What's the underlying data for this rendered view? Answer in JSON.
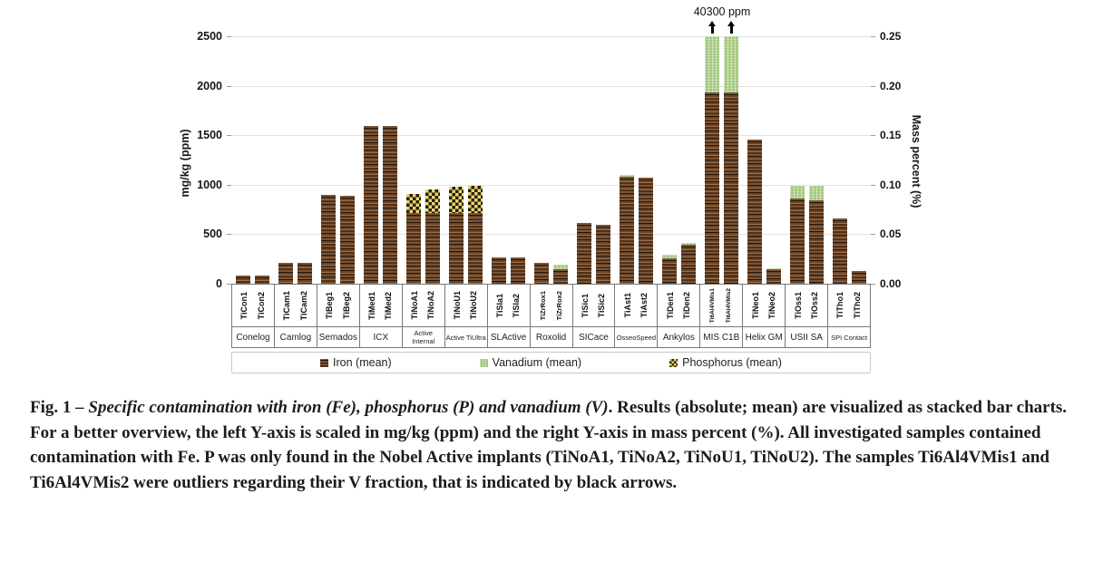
{
  "figure": {
    "annotation": {
      "text": "40300 ppm"
    },
    "y_left": {
      "label": "mg/kg (ppm)",
      "ticks": [
        "2500",
        "2000",
        "1500",
        "1000",
        "500",
        "0"
      ]
    },
    "y_right": {
      "label": "Mass percent (%)",
      "ticks": [
        "0.25",
        "0.20",
        "0.15",
        "0.10",
        "0.05",
        "0.00"
      ]
    },
    "legend": [
      {
        "id": "iron",
        "label": "Iron (mean)"
      },
      {
        "id": "vanadium",
        "label": "Vanadium (mean)"
      },
      {
        "id": "phosphorus",
        "label": "Phosphorus (mean)"
      }
    ],
    "colors": {
      "iron_base": "#6b4527",
      "iron_dark": "#23150b",
      "iron_light": "#9b6f4c",
      "vanadium_green": "#a3c77c",
      "phosphorus_yellow": "#edd36e",
      "phosphorus_dark": "#23210f",
      "gridline": "#e3e3e3",
      "axis_table_line": "#787878",
      "arrow": "#000000"
    }
  },
  "chart_data": {
    "type": "bar",
    "stacked": true,
    "title": "",
    "xlabel": "",
    "ylabel_left": "mg/kg (ppm)",
    "ylabel_right": "Mass percent (%)",
    "ylim_left": [
      0,
      2500
    ],
    "ylim_right": [
      0,
      0.25
    ],
    "grid": true,
    "legend_position": "bottom",
    "series_names": [
      "Iron (mean)",
      "Vanadium (mean)",
      "Phosphorus (mean)"
    ],
    "annotation": {
      "text": "40300 ppm",
      "applies_to": [
        "Ti6Al4VMis1",
        "Ti6Al4VMis2"
      ],
      "meaning": "true vanadium totals exceed the axis; bars clipped at 2500 ppm, marked with black up arrows"
    },
    "groups": [
      {
        "brand": "Conelog",
        "samples": [
          {
            "name": "TiCon1",
            "iron": 80,
            "vanadium": 0,
            "phosphorus": 0
          },
          {
            "name": "TiCon2",
            "iron": 80,
            "vanadium": 0,
            "phosphorus": 0
          }
        ]
      },
      {
        "brand": "Camlog",
        "samples": [
          {
            "name": "TiCam1",
            "iron": 215,
            "vanadium": 0,
            "phosphorus": 0
          },
          {
            "name": "TiCam2",
            "iron": 210,
            "vanadium": 0,
            "phosphorus": 0
          }
        ]
      },
      {
        "brand": "Semados",
        "samples": [
          {
            "name": "TiBeg1",
            "iron": 895,
            "vanadium": 0,
            "phosphorus": 0
          },
          {
            "name": "TiBeg2",
            "iron": 885,
            "vanadium": 0,
            "phosphorus": 0
          }
        ]
      },
      {
        "brand": "ICX",
        "samples": [
          {
            "name": "TiMed1",
            "iron": 1590,
            "vanadium": 0,
            "phosphorus": 0
          },
          {
            "name": "TiMed2",
            "iron": 1590,
            "vanadium": 0,
            "phosphorus": 0
          }
        ]
      },
      {
        "brand": "Active Internal",
        "samples": [
          {
            "name": "TiNoA1",
            "iron": 710,
            "vanadium": 0,
            "phosphorus": 195
          },
          {
            "name": "TiNoA2",
            "iron": 710,
            "vanadium": 0,
            "phosphorus": 240
          }
        ]
      },
      {
        "brand": "Active TiUltra",
        "samples": [
          {
            "name": "TiNoU1",
            "iron": 715,
            "vanadium": 0,
            "phosphorus": 265
          },
          {
            "name": "TiNoU2",
            "iron": 715,
            "vanadium": 0,
            "phosphorus": 270
          }
        ]
      },
      {
        "brand": "SLActive",
        "samples": [
          {
            "name": "TiSla1",
            "iron": 265,
            "vanadium": 0,
            "phosphorus": 0
          },
          {
            "name": "TiSla2",
            "iron": 270,
            "vanadium": 0,
            "phosphorus": 0
          }
        ]
      },
      {
        "brand": "Roxolid",
        "samples": [
          {
            "name": "TiZrRox1",
            "iron": 215,
            "vanadium": 0,
            "phosphorus": 0
          },
          {
            "name": "TiZrRox2",
            "iron": 150,
            "vanadium": 45,
            "phosphorus": 0
          }
        ]
      },
      {
        "brand": "SICace",
        "samples": [
          {
            "name": "TiSic1",
            "iron": 610,
            "vanadium": 0,
            "phosphorus": 0
          },
          {
            "name": "TiSic2",
            "iron": 595,
            "vanadium": 0,
            "phosphorus": 0
          }
        ]
      },
      {
        "brand": "OsseoSpeed",
        "samples": [
          {
            "name": "TiAst1",
            "iron": 1080,
            "vanadium": 15,
            "phosphorus": 0
          },
          {
            "name": "TiAst2",
            "iron": 1070,
            "vanadium": 0,
            "phosphorus": 0
          }
        ]
      },
      {
        "brand": "Ankylos",
        "samples": [
          {
            "name": "TiDen1",
            "iron": 260,
            "vanadium": 35,
            "phosphorus": 0
          },
          {
            "name": "TiDen2",
            "iron": 395,
            "vanadium": 15,
            "phosphorus": 0
          }
        ]
      },
      {
        "brand": "MIS C1B",
        "samples": [
          {
            "name": "Ti6Al4VMis1",
            "iron": 1930,
            "vanadium": 40300,
            "phosphorus": 0,
            "clipped": true,
            "arrow": true
          },
          {
            "name": "Ti6Al4VMis2",
            "iron": 1930,
            "vanadium": 40300,
            "phosphorus": 0,
            "clipped": true,
            "arrow": true
          }
        ]
      },
      {
        "brand": "Helix GM",
        "samples": [
          {
            "name": "TiNeo1",
            "iron": 1455,
            "vanadium": 0,
            "phosphorus": 0
          },
          {
            "name": "TiNeo2",
            "iron": 145,
            "vanadium": 15,
            "phosphorus": 0
          }
        ]
      },
      {
        "brand": "USII SA",
        "samples": [
          {
            "name": "TiOss1",
            "iron": 865,
            "vanadium": 125,
            "phosphorus": 0
          },
          {
            "name": "TiOss2",
            "iron": 840,
            "vanadium": 145,
            "phosphorus": 0
          }
        ]
      },
      {
        "brand": "SPI Contact",
        "samples": [
          {
            "name": "TiTho1",
            "iron": 655,
            "vanadium": 0,
            "phosphorus": 0
          },
          {
            "name": "TiTho2",
            "iron": 130,
            "vanadium": 0,
            "phosphorus": 0
          }
        ]
      }
    ]
  },
  "caption": {
    "label": "Fig. 1 – ",
    "italic": "Specific contamination with iron (Fe), phosphorus (P) and vanadium (V)",
    "rest": ". Results (absolute; mean) are visualized as stacked bar charts. For a better overview, the left Y-axis is scaled in mg/kg (ppm) and the right Y-axis in mass percent (%). All investigated samples contained contamination with Fe. P was only found in the Nobel Active implants (TiNoA1, TiNoA2, TiNoU1, TiNoU2). The samples Ti6Al4VMis1 and Ti6Al4VMis2 were outliers regarding their V fraction, that is indicated by black arrows."
  }
}
